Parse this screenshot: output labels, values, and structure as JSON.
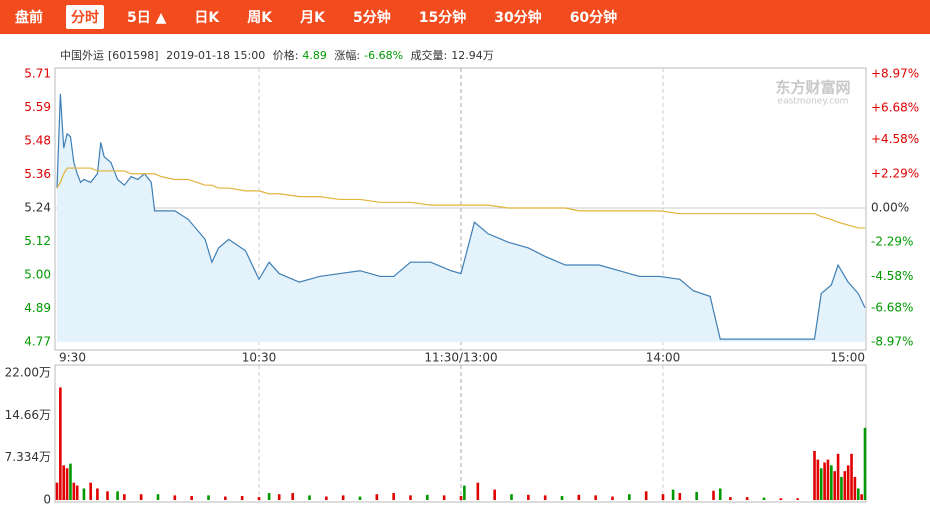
{
  "tabs": [
    "盘前",
    "分时",
    "5日 ▲",
    "日K",
    "周K",
    "月K",
    "5分钟",
    "15分钟",
    "30分钟",
    "60分钟"
  ],
  "selected_tab": 1,
  "info": {
    "name": "中国外运",
    "code": "[601598]",
    "datetime": "2019-01-18 15:00",
    "price_label": "价格:",
    "price": "4.89",
    "change_label": "涨幅:",
    "change": "-6.68%",
    "volume_label": "成交量:",
    "volume": "12.94万"
  },
  "watermark": [
    "东方财富网",
    "eastmoney.com"
  ],
  "chart_data": [
    {
      "type": "line",
      "x": [
        0,
        1,
        2,
        3,
        4,
        5,
        6,
        7,
        8,
        10,
        12,
        13,
        14,
        16,
        17,
        18,
        20,
        22,
        24,
        26,
        28,
        29,
        31,
        35,
        39,
        44,
        46,
        48,
        51,
        56,
        60,
        63,
        66,
        72,
        78,
        84,
        90,
        96,
        100,
        105,
        111,
        117,
        120,
        122,
        124,
        128,
        134,
        140,
        145,
        151,
        155,
        161,
        167,
        173,
        179,
        185,
        189,
        194,
        197,
        225,
        227,
        230,
        232,
        235,
        238,
        240
      ],
      "series": [
        {
          "color": "#3f7fb5",
          "fill": "#e3f2fb",
          "values": [
            5.31,
            5.64,
            5.45,
            5.5,
            5.49,
            5.4,
            5.36,
            5.33,
            5.34,
            5.33,
            5.36,
            5.47,
            5.42,
            5.4,
            5.37,
            5.34,
            5.32,
            5.35,
            5.34,
            5.36,
            5.33,
            5.23,
            5.23,
            5.23,
            5.2,
            5.13,
            5.05,
            5.1,
            5.13,
            5.09,
            4.99,
            5.05,
            5.01,
            4.98,
            5.0,
            5.01,
            5.02,
            5.0,
            5.0,
            5.05,
            5.05,
            5.02,
            5.01,
            5.1,
            5.19,
            5.15,
            5.12,
            5.1,
            5.07,
            5.04,
            5.04,
            5.04,
            5.02,
            5.0,
            5.0,
            4.99,
            4.95,
            4.93,
            4.78,
            4.78,
            4.94,
            4.97,
            5.04,
            4.98,
            4.94,
            4.89
          ]
        },
        {
          "color": "#e2b43c",
          "values": [
            5.31,
            5.33,
            5.36,
            5.38,
            5.38,
            5.38,
            5.38,
            5.38,
            5.38,
            5.38,
            5.37,
            5.37,
            5.37,
            5.37,
            5.37,
            5.37,
            5.37,
            5.36,
            5.36,
            5.36,
            5.36,
            5.36,
            5.35,
            5.34,
            5.34,
            5.32,
            5.32,
            5.31,
            5.31,
            5.3,
            5.3,
            5.29,
            5.29,
            5.28,
            5.28,
            5.27,
            5.27,
            5.26,
            5.26,
            5.26,
            5.25,
            5.25,
            5.25,
            5.25,
            5.25,
            5.25,
            5.24,
            5.24,
            5.24,
            5.24,
            5.23,
            5.23,
            5.23,
            5.23,
            5.23,
            5.22,
            5.22,
            5.22,
            5.22,
            5.22,
            5.21,
            5.2,
            5.19,
            5.18,
            5.17,
            5.17
          ]
        }
      ],
      "xlim": [
        0,
        240
      ],
      "xticks": [
        {
          "value": 0,
          "label": "9:30"
        },
        {
          "value": 60,
          "label": "10:30"
        },
        {
          "value": 120,
          "label": "11:30/13:00"
        },
        {
          "value": 180,
          "label": "14:00"
        },
        {
          "value": 240,
          "label": "15:00"
        }
      ],
      "ylim": [
        4.77,
        5.71
      ],
      "yticks": [
        {
          "value": 5.71,
          "label": "5.71"
        },
        {
          "value": 5.5925,
          "label": "5.59"
        },
        {
          "value": 5.4751,
          "label": "5.48"
        },
        {
          "value": 5.3576,
          "label": "5.36"
        },
        {
          "value": 5.24,
          "label": "5.24"
        },
        {
          "value": 5.1224,
          "label": "5.12"
        },
        {
          "value": 5.0049,
          "label": "5.00"
        },
        {
          "value": 4.8875,
          "label": "4.89"
        },
        {
          "value": 4.77,
          "label": "4.77"
        }
      ],
      "y2lim": [
        -8.97,
        8.97
      ],
      "y2ticks": [
        {
          "value": 8.97,
          "label": "+8.97%"
        },
        {
          "value": 6.68,
          "label": "+6.68%"
        },
        {
          "value": 4.58,
          "label": "+4.58%"
        },
        {
          "value": 2.29,
          "label": "+2.29%"
        },
        {
          "value": 0,
          "label": "0.00%"
        },
        {
          "value": -2.29,
          "label": "-2.29%"
        },
        {
          "value": -4.58,
          "label": "-4.58%"
        },
        {
          "value": -6.68,
          "label": "-6.68%"
        },
        {
          "value": -8.97,
          "label": "-8.97%"
        }
      ],
      "up_color": "#e00000",
      "down_color": "#009900"
    },
    {
      "type": "bar",
      "x": [
        0,
        1,
        2,
        3,
        4,
        5,
        6,
        8,
        10,
        12,
        15,
        18,
        20,
        25,
        30,
        35,
        40,
        45,
        50,
        55,
        60,
        63,
        66,
        70,
        75,
        80,
        85,
        90,
        95,
        100,
        105,
        110,
        115,
        120,
        121,
        125,
        130,
        135,
        140,
        145,
        150,
        155,
        160,
        165,
        170,
        175,
        180,
        183,
        185,
        190,
        195,
        197,
        200,
        205,
        210,
        215,
        220,
        225,
        226,
        227,
        228,
        229,
        230,
        231,
        232,
        233,
        234,
        235,
        236,
        237,
        238,
        239,
        240
      ],
      "values": [
        3,
        19.5,
        6,
        5.5,
        6.3,
        3,
        2.5,
        2,
        3,
        2,
        1.5,
        1.5,
        1,
        1,
        1,
        0.8,
        0.7,
        0.8,
        0.6,
        0.7,
        0.5,
        1.2,
        1,
        1.2,
        0.8,
        0.6,
        0.8,
        0.6,
        1,
        1.2,
        0.8,
        0.9,
        0.8,
        0.7,
        2.5,
        3,
        1.8,
        1,
        0.9,
        0.8,
        0.7,
        0.9,
        0.8,
        0.6,
        1,
        1.5,
        1,
        1.8,
        1.2,
        1.4,
        1.6,
        2,
        0.5,
        0.5,
        0.4,
        0.3,
        0.3,
        8.5,
        7,
        5.5,
        6.5,
        7,
        6,
        5,
        8,
        4,
        5,
        6,
        8,
        4,
        2,
        1,
        12.5
      ],
      "up": [
        true,
        true,
        true,
        true,
        false,
        true,
        true,
        false,
        true,
        true,
        true,
        false,
        true,
        true,
        false,
        true,
        true,
        false,
        true,
        true,
        true,
        false,
        true,
        true,
        false,
        true,
        true,
        false,
        true,
        true,
        true,
        false,
        true,
        true,
        false,
        true,
        true,
        false,
        true,
        true,
        false,
        true,
        true,
        true,
        false,
        true,
        true,
        false,
        true,
        false,
        true,
        false,
        true,
        true,
        false,
        true,
        true,
        true,
        true,
        false,
        true,
        true,
        false,
        true,
        true,
        false,
        true,
        true,
        true,
        true,
        false,
        true,
        false
      ],
      "up_color": "#e00000",
      "down_color": "#009900",
      "xlim": [
        0,
        240
      ],
      "ylim": [
        0,
        22
      ],
      "yticks": [
        {
          "value": 22,
          "label": "22.00万"
        },
        {
          "value": 14.66,
          "label": "14.66万"
        },
        {
          "value": 7.334,
          "label": "7.334万"
        },
        0
      ]
    }
  ]
}
